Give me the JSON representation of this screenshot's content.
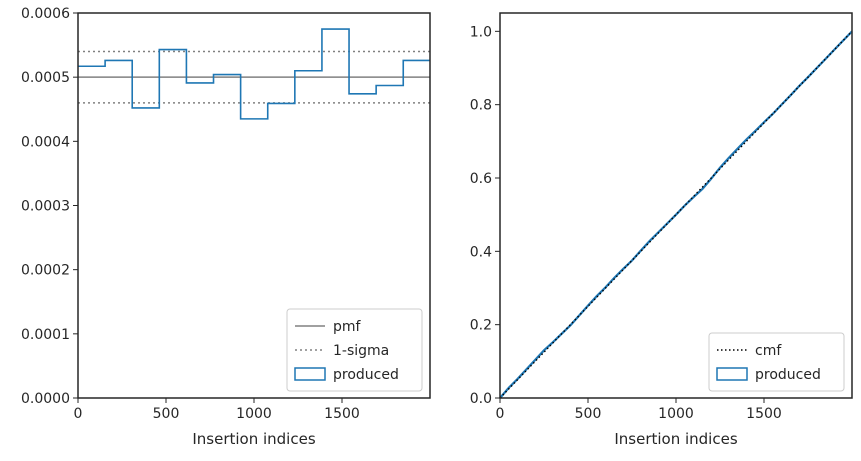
{
  "chart_data": [
    {
      "type": "line",
      "subtype": "step-histogram",
      "xlabel": "Insertion indices",
      "ylabel": "",
      "xlim": [
        0,
        2000
      ],
      "ylim": [
        0,
        0.0006
      ],
      "xticks": [
        0,
        500,
        1000,
        1500
      ],
      "xtick_labels": [
        "0",
        "500",
        "1000",
        "1500"
      ],
      "yticks": [
        0,
        0.0001,
        0.0002,
        0.0003,
        0.0004,
        0.0005,
        0.0006
      ],
      "ytick_labels": [
        "0.0000",
        "0.0001",
        "0.0002",
        "0.0003",
        "0.0004",
        "0.0005",
        "0.0006"
      ],
      "legend_position": "lower-right",
      "legend": [
        "pmf",
        "1-sigma",
        "produced"
      ],
      "reference_lines": [
        {
          "legend": "pmf",
          "y": 0.0005,
          "style": "solid",
          "color": "#808080"
        },
        {
          "legend": "1-sigma",
          "y": 0.00054,
          "style": "dotted",
          "color": "#808080"
        },
        {
          "legend": "1-sigma",
          "y": 0.00046,
          "style": "dotted",
          "color": "#808080"
        }
      ],
      "series": [
        {
          "legend": "produced",
          "color": "#1f77b4",
          "bin_edges": [
            0,
            154,
            308,
            462,
            616,
            770,
            924,
            1078,
            1232,
            1386,
            1540,
            1694,
            1848,
            2000
          ],
          "values": [
            0.000517,
            0.000526,
            0.000452,
            0.000543,
            0.000491,
            0.000504,
            0.000435,
            0.000459,
            0.00051,
            0.000575,
            0.000474,
            0.000487,
            0.000526
          ]
        }
      ]
    },
    {
      "type": "line",
      "xlabel": "Insertion indices",
      "ylabel": "",
      "xlim": [
        0,
        2000
      ],
      "ylim": [
        0,
        1.05
      ],
      "xticks": [
        0,
        500,
        1000,
        1500
      ],
      "xtick_labels": [
        "0",
        "500",
        "1000",
        "1500"
      ],
      "yticks": [
        0,
        0.2,
        0.4,
        0.6,
        0.8,
        1.0
      ],
      "ytick_labels": [
        "0.0",
        "0.2",
        "0.4",
        "0.6",
        "0.8",
        "1.0"
      ],
      "legend_position": "lower-right",
      "legend": [
        "cmf",
        "produced"
      ],
      "series": [
        {
          "legend": "cmf",
          "style": "dotted",
          "color": "#000000",
          "x": [
            0,
            2000
          ],
          "y": [
            0,
            1.0
          ]
        },
        {
          "legend": "produced",
          "style": "solid",
          "color": "#1f77b4",
          "x": [
            0,
            50,
            100,
            150,
            200,
            250,
            300,
            350,
            400,
            450,
            500,
            550,
            600,
            650,
            700,
            750,
            800,
            850,
            900,
            950,
            1000,
            1050,
            1100,
            1150,
            1200,
            1250,
            1300,
            1350,
            1400,
            1450,
            1500,
            1550,
            1600,
            1650,
            1700,
            1750,
            1800,
            1850,
            1900,
            1950,
            2000
          ],
          "y": [
            0,
            0.028,
            0.052,
            0.078,
            0.104,
            0.13,
            0.152,
            0.175,
            0.198,
            0.225,
            0.252,
            0.278,
            0.302,
            0.328,
            0.352,
            0.375,
            0.402,
            0.428,
            0.452,
            0.476,
            0.5,
            0.525,
            0.548,
            0.57,
            0.598,
            0.628,
            0.655,
            0.68,
            0.705,
            0.728,
            0.752,
            0.775,
            0.8,
            0.825,
            0.851,
            0.875,
            0.9,
            0.925,
            0.95,
            0.975,
            1.0
          ]
        }
      ]
    }
  ]
}
